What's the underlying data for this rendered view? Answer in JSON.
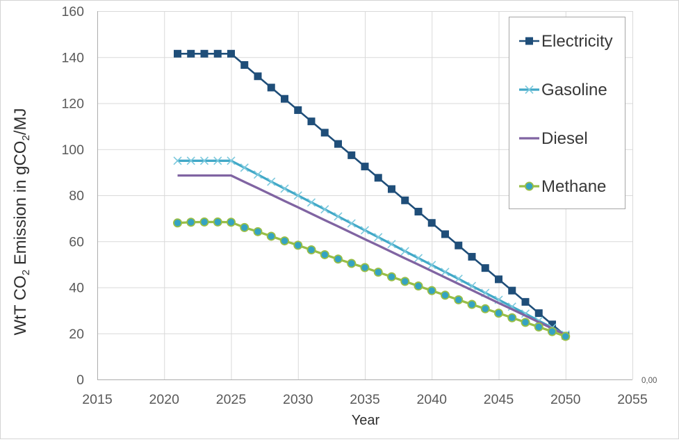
{
  "window": {
    "background": "#ffffff",
    "border_color": "#d4d4d4"
  },
  "chart_data": {
    "type": "line",
    "title": "",
    "xlabel": "Year",
    "ylabel": "WtT CO2 Emission in gCO2/MJ",
    "ylabel_parts": [
      {
        "text": "WtT CO"
      },
      {
        "text": "2",
        "sub": true
      },
      {
        "text": " Emission in gCO"
      },
      {
        "text": "2",
        "sub": true
      },
      {
        "text": "/MJ"
      }
    ],
    "x_axis": {
      "min": 2015,
      "max": 2055,
      "tick_step": 5,
      "tick_labels": [
        "2015",
        "2020",
        "2025",
        "2030",
        "2035",
        "2040",
        "2045",
        "2050",
        "2055"
      ]
    },
    "y_axis": {
      "min": 0,
      "max": 160,
      "tick_step": 20,
      "tick_labels": [
        "0",
        "20",
        "40",
        "60",
        "80",
        "100",
        "120",
        "140",
        "160"
      ]
    },
    "grid": true,
    "legend_position": "inside-top-right",
    "annotation": "0,00",
    "years": [
      2021,
      2022,
      2023,
      2024,
      2025,
      2026,
      2027,
      2028,
      2029,
      2030,
      2031,
      2032,
      2033,
      2034,
      2035,
      2036,
      2037,
      2038,
      2039,
      2040,
      2041,
      2042,
      2043,
      2044,
      2045,
      2046,
      2047,
      2048,
      2049,
      2050
    ],
    "series": [
      {
        "name": "Electricity",
        "color": "#1F4E79",
        "marker": "square",
        "values": [
          141.5,
          141.5,
          141.5,
          141.5,
          141.5,
          136.6,
          131.7,
          126.8,
          121.9,
          117,
          112.1,
          107.2,
          102.3,
          97.4,
          92.5,
          87.6,
          82.7,
          77.8,
          72.9,
          68,
          63.1,
          58.2,
          53.3,
          48.4,
          43.5,
          38.6,
          33.7,
          28.8,
          23.9,
          19
        ]
      },
      {
        "name": "Gasoline",
        "color": "#41A8C7",
        "marker": "x",
        "marker_color": "#7CC9DD",
        "values": [
          95,
          95,
          95,
          95,
          95,
          92,
          89,
          85.9,
          82.9,
          79.9,
          76.9,
          73.9,
          70.8,
          67.8,
          64.8,
          61.8,
          58.8,
          55.7,
          52.7,
          49.7,
          46.7,
          43.7,
          40.6,
          37.6,
          34.6,
          31.6,
          28.6,
          25.5,
          22.5,
          19.5
        ]
      },
      {
        "name": "Diesel",
        "color": "#8064A2",
        "marker": "none",
        "values": [
          88.6,
          88.6,
          88.6,
          88.6,
          88.6,
          85.8,
          83.1,
          80.3,
          77.5,
          74.8,
          72,
          69.2,
          66.5,
          63.7,
          60.9,
          58.2,
          55.4,
          52.6,
          49.9,
          47.1,
          44.3,
          41.5,
          38.8,
          36,
          33.2,
          30.5,
          27.7,
          24.9,
          22.2,
          19.4
        ]
      },
      {
        "name": "Methane",
        "color": "#98BE46",
        "marker": "circle",
        "marker_fill": "#35A3C2",
        "values": [
          68,
          68.3,
          68.4,
          68.4,
          68.3,
          66,
          64.2,
          62.2,
          60.2,
          58.3,
          56.3,
          54.2,
          52.3,
          50.4,
          48.6,
          46.6,
          44.6,
          42.6,
          40.6,
          38.6,
          36.6,
          34.6,
          32.6,
          30.7,
          28.8,
          26.8,
          24.8,
          22.8,
          20.8,
          18.7
        ]
      }
    ]
  },
  "styles": {
    "gridline": "#D9D9D9",
    "axis_line": "#ACACAC",
    "tick_color": "#595959",
    "title_color": "#2E2E2E",
    "legend_text": "#383838",
    "legend_border": "#A6A6A6",
    "annotation_color": "#595959"
  }
}
